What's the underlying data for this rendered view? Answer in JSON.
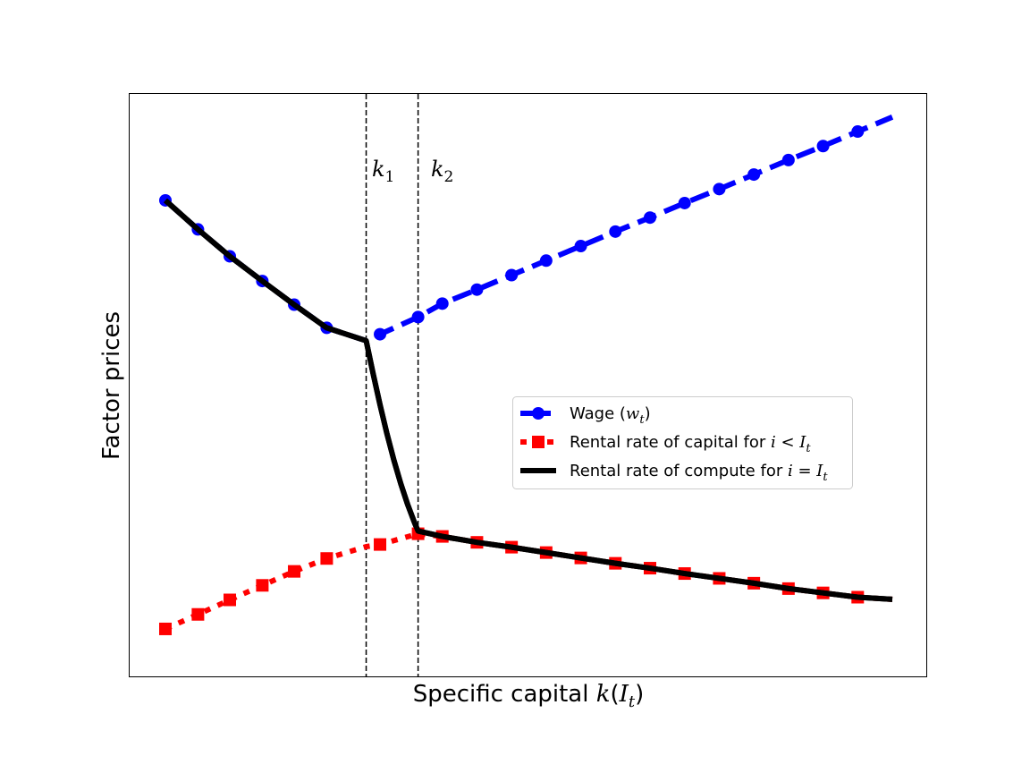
{
  "chart_data": {
    "type": "line",
    "title": "",
    "xlabel": "Specific capital k(I_t)",
    "ylabel": "Factor prices",
    "xlim": [
      0,
      10.5
    ],
    "ylim": [
      0,
      10
    ],
    "x_ticks_shown": false,
    "y_ticks_shown": false,
    "grid": false,
    "legend": {
      "placement": "center-right"
    },
    "vlines": [
      {
        "x": 2.9,
        "label": "k_1",
        "style": "dashed",
        "color": "#000000"
      },
      {
        "x": 3.65,
        "label": "k_2",
        "style": "dashed",
        "color": "#000000"
      }
    ],
    "series": [
      {
        "name": "Wage (w_t)",
        "style": "dashed",
        "marker": "circle",
        "color": "#0000ff",
        "x": [
          0,
          0.47,
          0.93,
          1.4,
          1.86,
          2.33,
          2.9,
          3.1,
          3.65,
          4.0,
          4.5,
          5.0,
          5.5,
          6.0,
          6.5,
          7.0,
          7.5,
          8.0,
          8.5,
          9.0,
          9.5,
          10.0,
          10.5
        ],
        "y": [
          8.42,
          7.88,
          7.38,
          6.92,
          6.48,
          6.05,
          5.81,
          5.93,
          6.25,
          6.5,
          6.76,
          7.03,
          7.3,
          7.57,
          7.84,
          8.1,
          8.37,
          8.63,
          8.9,
          9.17,
          9.43,
          9.7,
          9.97
        ],
        "markers_at": [
          0,
          0.47,
          0.93,
          1.4,
          1.86,
          2.33,
          3.1,
          3.65,
          4.0,
          4.5,
          5.0,
          5.5,
          6.0,
          6.5,
          7.0,
          7.5,
          8.0,
          8.5,
          9.0,
          9.5,
          10.0
        ]
      },
      {
        "name": "Rental rate of capital for i < I_t",
        "style": "dotted",
        "marker": "square",
        "color": "#ff0000",
        "x": [
          0,
          0.47,
          0.93,
          1.4,
          1.86,
          2.33,
          2.9,
          3.1,
          3.65,
          4.0,
          4.5,
          5.0,
          5.5,
          6.0,
          6.5,
          7.0,
          7.5,
          8.0,
          8.5,
          9.0,
          9.5,
          10.0,
          10.5
        ],
        "y": [
          0.45,
          0.72,
          0.99,
          1.26,
          1.52,
          1.76,
          1.98,
          2.02,
          2.22,
          2.17,
          2.06,
          1.97,
          1.87,
          1.77,
          1.67,
          1.58,
          1.48,
          1.39,
          1.3,
          1.2,
          1.12,
          1.04,
          1.0
        ],
        "markers_at": [
          0,
          0.47,
          0.93,
          1.4,
          1.86,
          2.33,
          3.1,
          3.65,
          4.0,
          4.5,
          5.0,
          5.5,
          6.0,
          6.5,
          7.0,
          7.5,
          8.0,
          8.5,
          9.0,
          9.5,
          10.0
        ]
      },
      {
        "name": "Rental rate of compute for i = I_t",
        "style": "solid",
        "marker": "none",
        "color": "#000000",
        "x": [
          0,
          0.47,
          0.93,
          1.4,
          1.86,
          2.33,
          2.9,
          3.0,
          3.1,
          3.2,
          3.3,
          3.4,
          3.5,
          3.6,
          3.65,
          4.0,
          4.5,
          5.0,
          5.5,
          6.0,
          6.5,
          7.0,
          7.5,
          8.0,
          8.5,
          9.0,
          9.5,
          10.0,
          10.5
        ],
        "y": [
          8.42,
          7.88,
          7.38,
          6.92,
          6.48,
          6.05,
          5.81,
          5.2,
          4.62,
          4.08,
          3.59,
          3.15,
          2.76,
          2.42,
          2.27,
          2.17,
          2.06,
          1.97,
          1.87,
          1.77,
          1.67,
          1.58,
          1.48,
          1.39,
          1.3,
          1.2,
          1.12,
          1.04,
          1.0
        ]
      }
    ]
  },
  "legend_items": [
    {
      "prefix": "Wage (",
      "math": "w",
      "sub": "t",
      "suffix": ")"
    },
    {
      "prefix": "Rental rate of capital for ",
      "math": "i",
      "op": " < ",
      "math2": "I",
      "sub": "t",
      "suffix": ""
    },
    {
      "prefix": "Rental rate of compute for ",
      "math": "i",
      "op": " = ",
      "math2": "I",
      "sub": "t",
      "suffix": ""
    }
  ],
  "axis_text": {
    "xlabel_prefix": "Specific capital ",
    "xlabel_math": "k",
    "xlabel_paren_open": "(",
    "xlabel_math2": "I",
    "xlabel_sub": "t",
    "xlabel_paren_close": ")",
    "ylabel": "Factor prices",
    "k1_math": "k",
    "k1_sub": "1",
    "k2_math": "k",
    "k2_sub": "2"
  }
}
